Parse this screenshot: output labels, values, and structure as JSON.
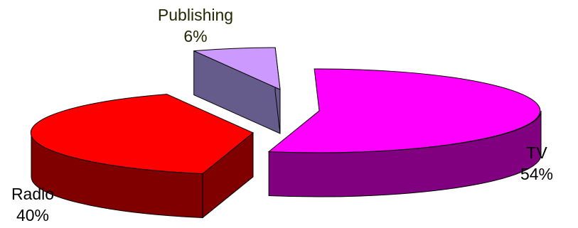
{
  "chart_data": {
    "type": "pie",
    "style": "3d-exploded",
    "title": "",
    "slices": [
      {
        "label": "TV",
        "value": 54,
        "display": "54%",
        "color": "#ff00ff",
        "side_color": "#800080"
      },
      {
        "label": "Radio",
        "value": 40,
        "display": "40%",
        "color": "#ff0000",
        "side_color": "#800000"
      },
      {
        "label": "Publishing",
        "value": 6,
        "display": "6%",
        "color": "#cc99ff",
        "side_color": "#665c8c"
      }
    ],
    "legend": "none"
  }
}
